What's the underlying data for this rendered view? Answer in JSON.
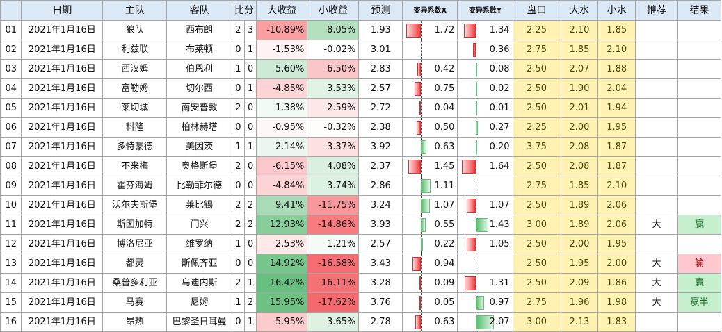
{
  "headers": [
    "",
    "日期",
    "主队",
    "客队",
    "比分",
    "大收益",
    "小收益",
    "预测",
    "变异系数X",
    "变异系数Y",
    "盘口",
    "大水",
    "小水",
    "推荐",
    "结果"
  ],
  "colors": {
    "header_bg": "#dbe8f6",
    "odds_bg": "#fff2b3",
    "win_bg": "#c6efce",
    "lose_bg": "#ffc7ce",
    "neg_bar": "#f03c3c",
    "pos_bar": "#58be6e"
  },
  "rows": [
    {
      "id": "01",
      "date": "2021年1月16日",
      "home": "狼队",
      "away": "西布朗",
      "sh": "2",
      "sa": "3",
      "big": "-10.89%",
      "small": "8.05%",
      "pred": "1.93",
      "x": "1.72",
      "y": "1.34",
      "line": "2.25",
      "bw": "2.10",
      "sw": "1.85",
      "rec": "",
      "res": ""
    },
    {
      "id": "02",
      "date": "2021年1月16日",
      "home": "利兹联",
      "away": "布莱顿",
      "sh": "0",
      "sa": "1",
      "big": "-1.53%",
      "small": "-0.02%",
      "pred": "3.01",
      "x": "",
      "y": "0.36",
      "line": "2.75",
      "bw": "1.85",
      "sw": "2.10",
      "rec": "",
      "res": ""
    },
    {
      "id": "03",
      "date": "2021年1月16日",
      "home": "西汉姆",
      "away": "伯恩利",
      "sh": "1",
      "sa": "0",
      "big": "5.60%",
      "small": "-6.50%",
      "pred": "2.83",
      "x": "0.42",
      "y": "0.08",
      "line": "2.50",
      "bw": "2.07",
      "sw": "1.88",
      "rec": "",
      "res": ""
    },
    {
      "id": "04",
      "date": "2021年1月16日",
      "home": "富勒姆",
      "away": "切尔西",
      "sh": "0",
      "sa": "1",
      "big": "-4.85%",
      "small": "3.53%",
      "pred": "2.57",
      "x": "0.75",
      "y": "0.02",
      "line": "2.50",
      "bw": "1.90",
      "sw": "2.04",
      "rec": "",
      "res": ""
    },
    {
      "id": "05",
      "date": "2021年1月16日",
      "home": "莱切城",
      "away": "南安普敦",
      "sh": "2",
      "sa": "0",
      "big": "1.38%",
      "small": "-2.59%",
      "pred": "2.72",
      "x": "0.04",
      "y": "0.01",
      "line": "2.50",
      "bw": "2.01",
      "sw": "1.94",
      "rec": "",
      "res": ""
    },
    {
      "id": "06",
      "date": "2021年1月16日",
      "home": "科隆",
      "away": "柏林赫塔",
      "sh": "0",
      "sa": "0",
      "big": "-0.95%",
      "small": "-0.32%",
      "pred": "2.38",
      "x": "0.50",
      "y": "0.27",
      "line": "2.25",
      "bw": "2.00",
      "sw": "1.95",
      "rec": "",
      "res": ""
    },
    {
      "id": "07",
      "date": "2021年1月16日",
      "home": "多特蒙德",
      "away": "美因茨",
      "sh": "1",
      "sa": "1",
      "big": "2.14%",
      "small": "-3.37%",
      "pred": "3.92",
      "x": "0.63",
      "y": "0.20",
      "line": "3.75",
      "bw": "2.08",
      "sw": "1.87",
      "rec": "",
      "res": ""
    },
    {
      "id": "08",
      "date": "2021年1月16日",
      "home": "不来梅",
      "away": "奥格斯堡",
      "sh": "2",
      "sa": "0",
      "big": "-6.15%",
      "small": "4.08%",
      "pred": "2.37",
      "x": "1.45",
      "y": "1.64",
      "line": "2.50",
      "bw": "2.08",
      "sw": "1.87",
      "rec": "",
      "res": ""
    },
    {
      "id": "09",
      "date": "2021年1月16日",
      "home": "霍芬海姆",
      "away": "比勒菲尔德",
      "sh": "0",
      "sa": "0",
      "big": "-4.84%",
      "small": "3.74%",
      "pred": "2.86",
      "x": "1.11",
      "y": "",
      "line": "2.75",
      "bw": "1.85",
      "sw": "2.10",
      "rec": "",
      "res": ""
    },
    {
      "id": "10",
      "date": "2021年1月16日",
      "home": "沃尔夫斯堡",
      "away": "莱比锡",
      "sh": "2",
      "sa": "2",
      "big": "9.41%",
      "small": "-11.75%",
      "pred": "3.24",
      "x": "1.07",
      "y": "1.07",
      "line": "2.50",
      "bw": "1.89",
      "sw": "2.06",
      "rec": "",
      "res": ""
    },
    {
      "id": "11",
      "date": "2021年1月16日",
      "home": "斯图加特",
      "away": "门兴",
      "sh": "2",
      "sa": "2",
      "big": "12.93%",
      "small": "-14.86%",
      "pred": "3.93",
      "x": "0.55",
      "y": "1.43",
      "line": "3.00",
      "bw": "1.89",
      "sw": "2.06",
      "rec": "大",
      "res": "赢"
    },
    {
      "id": "12",
      "date": "2021年1月16日",
      "home": "博洛尼亚",
      "away": "维罗纳",
      "sh": "1",
      "sa": "0",
      "big": "-2.53%",
      "small": "1.21%",
      "pred": "2.57",
      "x": "0.22",
      "y": "1.05",
      "line": "2.50",
      "bw": "2.00",
      "sw": "1.95",
      "rec": "",
      "res": ""
    },
    {
      "id": "13",
      "date": "2021年1月16日",
      "home": "都灵",
      "away": "斯佩齐亚",
      "sh": "0",
      "sa": "0",
      "big": "14.92%",
      "small": "-16.58%",
      "pred": "3.43",
      "x": "0.94",
      "y": "",
      "line": "2.50",
      "bw": "1.95",
      "sw": "2.00",
      "rec": "大",
      "res": "输"
    },
    {
      "id": "14",
      "date": "2021年1月16日",
      "home": "桑普多利亚",
      "away": "乌迪内斯",
      "sh": "2",
      "sa": "1",
      "big": "16.42%",
      "small": "-16.11%",
      "pred": "3.28",
      "x": "0.09",
      "y": "1.31",
      "line": "2.50",
      "bw": "2.09",
      "sw": "1.86",
      "rec": "大",
      "res": "赢"
    },
    {
      "id": "15",
      "date": "2021年1月16日",
      "home": "马赛",
      "away": "尼姆",
      "sh": "1",
      "sa": "2",
      "big": "15.95%",
      "small": "-17.62%",
      "pred": "3.76",
      "x": "0.05",
      "y": "0.97",
      "line": "2.75",
      "bw": "1.96",
      "sw": "1.98",
      "rec": "大",
      "res": "赢半"
    },
    {
      "id": "16",
      "date": "2021年1月16日",
      "home": "昂热",
      "away": "巴黎圣日耳曼",
      "sh": "0",
      "sa": "1",
      "big": "-5.95%",
      "small": "3.65%",
      "pred": "2.78",
      "x": "0.63",
      "y": "2.07",
      "line": "3.00",
      "bw": "2.13",
      "sw": "1.83",
      "rec": "",
      "res": ""
    }
  ],
  "bars": {
    "x_sign": [
      "-",
      "",
      "-",
      "-",
      "-",
      "-",
      "+",
      "-",
      "+",
      "+",
      "+",
      "+",
      "-",
      "-",
      "-",
      "-"
    ],
    "y_sign": [
      "-",
      "-",
      "+",
      "+",
      "+",
      "+",
      "+",
      "-",
      "",
      "-",
      "+",
      "-",
      "",
      "-",
      "+",
      "+"
    ]
  }
}
